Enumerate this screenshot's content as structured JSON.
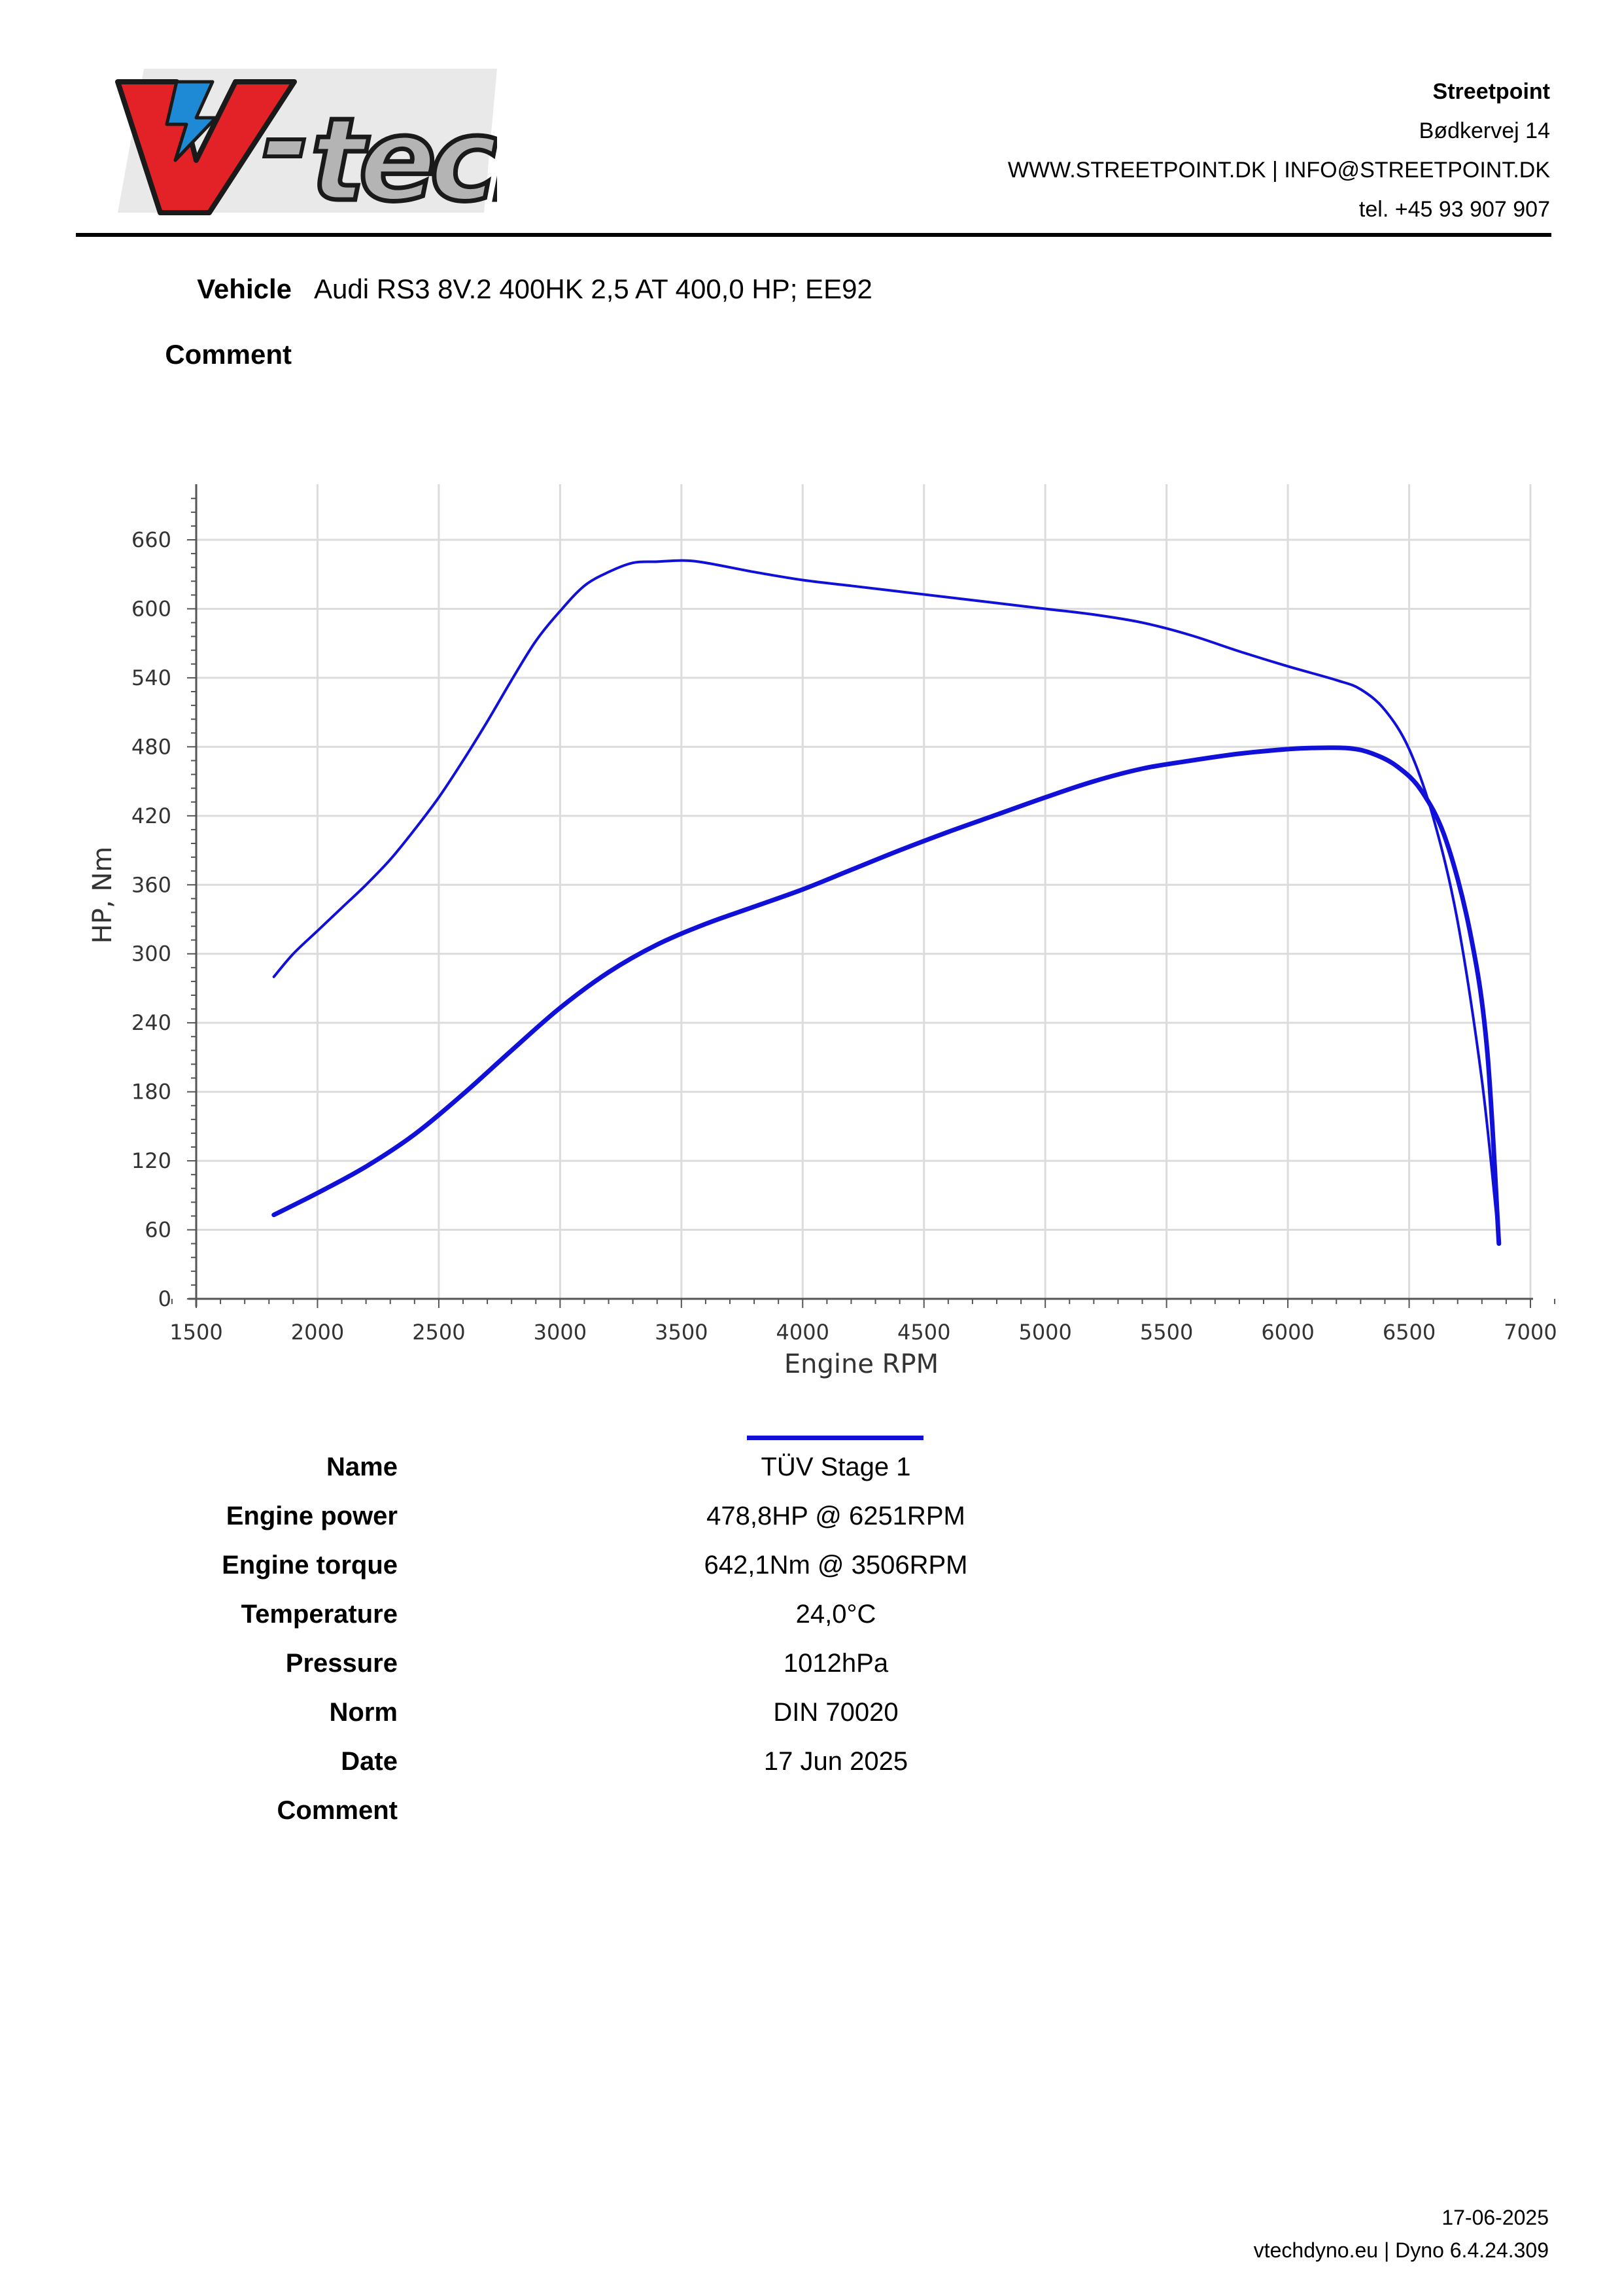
{
  "logo": {
    "text": "V-tech",
    "colors": {
      "red": "#e22227",
      "blue": "#1e8ad6",
      "gray": "#b4b4b4",
      "outline": "#1a1a1a"
    }
  },
  "header": {
    "company": "Streetpoint",
    "address": "Bødkervej 14",
    "web": "WWW.STREETPOINT.DK | INFO@STREETPOINT.DK",
    "phone": "tel. +45 93 907 907"
  },
  "vehicle": {
    "label": "Vehicle",
    "value": "Audi RS3 8V.2 400HK 2,5 AT 400,0 HP; EE92"
  },
  "comment": {
    "label": "Comment",
    "value": ""
  },
  "chart_data": {
    "type": "line",
    "xlabel": "Engine RPM",
    "ylabel": "HP, Nm",
    "xlim": [
      1500,
      7000
    ],
    "ylim": [
      0,
      660
    ],
    "xticks": [
      1500,
      2000,
      2500,
      3000,
      3500,
      4000,
      4500,
      5000,
      5500,
      6000,
      6500,
      7000
    ],
    "yticks": [
      0,
      60,
      120,
      180,
      240,
      300,
      360,
      420,
      480,
      540,
      600,
      660
    ],
    "grid": true,
    "series_color": "#1010d8",
    "series": [
      {
        "name": "",
        "measure": "torque",
        "x": [
          1820,
          1900,
          2000,
          2100,
          2200,
          2300,
          2400,
          2500,
          2600,
          2700,
          2800,
          2900,
          3000,
          3100,
          3200,
          3300,
          3400,
          3506,
          3600,
          3800,
          4000,
          4200,
          4400,
          4600,
          4800,
          5000,
          5200,
          5400,
          5600,
          5800,
          6000,
          6200,
          6300,
          6400,
          6500,
          6600,
          6700,
          6800,
          6870
        ],
        "y": [
          280,
          300,
          320,
          340,
          360,
          382,
          408,
          436,
          468,
          502,
          538,
          572,
          598,
          620,
          632,
          640,
          641,
          642,
          640,
          632,
          625,
          620,
          615,
          610,
          605,
          600,
          595,
          588,
          577,
          563,
          550,
          538,
          530,
          512,
          478,
          418,
          328,
          190,
          50
        ]
      },
      {
        "name": "",
        "measure": "power",
        "x": [
          1820,
          2000,
          2200,
          2400,
          2600,
          2800,
          3000,
          3200,
          3400,
          3600,
          3800,
          4000,
          4200,
          4400,
          4600,
          4800,
          5000,
          5200,
          5400,
          5600,
          5800,
          6000,
          6100,
          6251,
          6350,
          6450,
          6550,
          6650,
          6750,
          6820,
          6870
        ],
        "y": [
          73,
          92,
          115,
          143,
          178,
          216,
          253,
          284,
          308,
          326,
          341,
          356,
          373,
          390,
          406,
          421,
          436,
          450,
          461,
          468,
          474,
          478,
          479,
          478.8,
          474,
          463,
          442,
          400,
          320,
          220,
          48
        ]
      }
    ]
  },
  "results": [
    {
      "label": "Name",
      "value": "TÜV Stage 1"
    },
    {
      "label": "Engine power",
      "value": "478,8HP @ 6251RPM"
    },
    {
      "label": "Engine torque",
      "value": "642,1Nm @ 3506RPM"
    },
    {
      "label": "Temperature",
      "value": "24,0°C"
    },
    {
      "label": "Pressure",
      "value": "1012hPa"
    },
    {
      "label": "Norm",
      "value": "DIN 70020"
    },
    {
      "label": "Date",
      "value": "17 Jun 2025"
    },
    {
      "label": "Comment",
      "value": ""
    }
  ],
  "footer": {
    "date": "17-06-2025",
    "software": "vtechdyno.eu | Dyno 6.4.24.309"
  }
}
